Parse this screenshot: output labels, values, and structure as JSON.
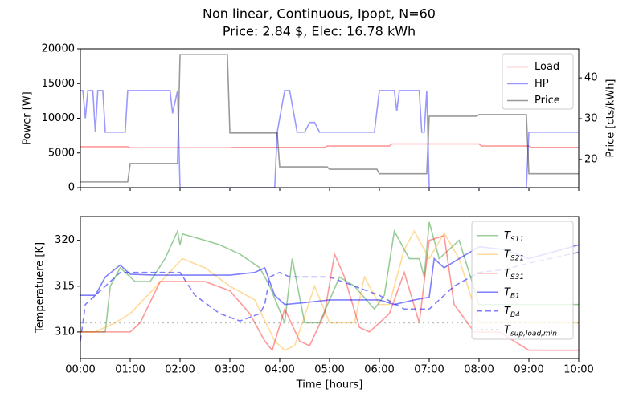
{
  "chart_data": [
    {
      "type": "line",
      "title": "Non linear, Continuous, Ipopt, N=60",
      "subtitle": "Price: 2.84 $, Elec: 16.78 kWh",
      "ylabel": "Power [W]",
      "y2label": "Price [cts/kWh]",
      "ylim": [
        0,
        20000
      ],
      "yticks": [
        0,
        5000,
        10000,
        15000,
        20000
      ],
      "y2lim": [
        13.1,
        47.1
      ],
      "y2ticks": [
        20,
        30,
        40
      ],
      "legend": "upper right",
      "series": [
        {
          "name": "Load",
          "color": "red",
          "alpha": 0.4,
          "style": "solid",
          "x": [
            0,
            0.95,
            1.0,
            3.0,
            3.05,
            4.9,
            4.95,
            6.2,
            6.25,
            8.0,
            8.05,
            9.0,
            9.05,
            10
          ],
          "values": [
            5900,
            5900,
            5750,
            5750,
            5800,
            5800,
            6000,
            6000,
            6300,
            6300,
            6000,
            6000,
            5800,
            5800
          ]
        },
        {
          "name": "HP",
          "color": "blue",
          "alpha": 0.4,
          "style": "solid",
          "x": [
            0,
            0.05,
            0.1,
            0.15,
            0.25,
            0.3,
            0.35,
            0.45,
            0.5,
            0.9,
            0.95,
            1.8,
            1.85,
            1.95,
            2.0,
            3.9,
            3.95,
            4.0,
            4.1,
            4.2,
            4.3,
            4.35,
            4.5,
            4.6,
            4.7,
            4.8,
            5.9,
            6.0,
            6.3,
            6.35,
            6.4,
            6.8,
            6.85,
            6.9,
            6.95,
            7.0,
            8.95,
            9.0,
            10
          ],
          "values": [
            14000,
            14000,
            10000,
            14000,
            14000,
            8000,
            14000,
            14000,
            8000,
            8000,
            14000,
            14000,
            10700,
            14000,
            0,
            0,
            8000,
            10000,
            14000,
            14000,
            10000,
            8000,
            8000,
            9400,
            9400,
            8000,
            8000,
            14000,
            14000,
            11000,
            14000,
            14000,
            8000,
            8000,
            14000,
            0,
            0,
            8000,
            8000
          ]
        },
        {
          "name": "Price",
          "color": "black",
          "alpha": 0.4,
          "style": "solid",
          "axis": "y2",
          "x": [
            0,
            0.95,
            1.0,
            1.95,
            2.0,
            2.95,
            3.0,
            3.95,
            4.0,
            4.95,
            5.0,
            5.95,
            6.0,
            6.95,
            7.0,
            7.95,
            8.0,
            8.95,
            9.0,
            10
          ],
          "values": [
            14.5,
            14.5,
            19,
            19,
            45.7,
            45.7,
            26.5,
            26.5,
            18.2,
            18.2,
            17.6,
            17.6,
            16.5,
            16.5,
            30.6,
            30.6,
            31,
            31,
            16.5,
            16.5
          ]
        }
      ]
    },
    {
      "type": "line",
      "xlabel": "Time [hours]",
      "ylabel": "Temperatuere [K]",
      "xlim": [
        0,
        10
      ],
      "xticks": [
        {
          "value": 0,
          "label": "00:00"
        },
        {
          "value": 1,
          "label": "01:00"
        },
        {
          "value": 2,
          "label": "02:00"
        },
        {
          "value": 3,
          "label": "03:00"
        },
        {
          "value": 4,
          "label": "04:00"
        },
        {
          "value": 5,
          "label": "05:00"
        },
        {
          "value": 6,
          "label": "06:00"
        },
        {
          "value": 7,
          "label": "07:00"
        },
        {
          "value": 8,
          "label": "08:00"
        },
        {
          "value": 9,
          "label": "09:00"
        },
        {
          "value": 10,
          "label": "10:00"
        }
      ],
      "ylim": [
        307.1,
        322.6
      ],
      "yticks": [
        310,
        315,
        320
      ],
      "legend": "upper right",
      "series": [
        {
          "name": {
            "base": "T",
            "sub": "S11"
          },
          "color": "green",
          "alpha": 0.4,
          "style": "solid",
          "x": [
            0,
            0.5,
            0.6,
            0.8,
            1.1,
            1.4,
            1.7,
            1.95,
            2.0,
            2.05,
            2.5,
            2.8,
            3.2,
            3.6,
            3.8,
            4.1,
            4.25,
            4.5,
            4.8,
            5.2,
            5.5,
            5.9,
            6.1,
            6.3,
            6.6,
            6.8,
            6.9,
            7.0,
            7.2,
            7.6,
            8.0,
            10
          ],
          "values": [
            310,
            310,
            315,
            317,
            315.5,
            315.5,
            318,
            321,
            319.5,
            320.7,
            320,
            319.5,
            318.5,
            317,
            315,
            311,
            318,
            311,
            311,
            316,
            315,
            312.5,
            314,
            321,
            318,
            318,
            316,
            322,
            318,
            320,
            313,
            313
          ]
        },
        {
          "name": {
            "base": "T",
            "sub": "S21"
          },
          "color": "orange",
          "alpha": 0.4,
          "style": "solid",
          "x": [
            0,
            0.3,
            0.7,
            1.0,
            2.05,
            2.5,
            3.0,
            3.5,
            3.9,
            4.1,
            4.3,
            4.7,
            5.0,
            5.5,
            5.7,
            6.0,
            6.2,
            6.5,
            6.7,
            7.0,
            7.3,
            7.6,
            8.0,
            10
          ],
          "values": [
            310,
            310,
            311,
            312,
            318,
            317,
            315,
            313.5,
            309,
            308,
            308.5,
            315,
            311,
            311,
            316,
            313,
            313,
            319,
            321,
            318,
            320.8,
            318,
            311,
            311
          ]
        },
        {
          "name": {
            "base": "T",
            "sub": "S31"
          },
          "color": "red",
          "alpha": 0.4,
          "style": "solid",
          "x": [
            0,
            1.0,
            1.2,
            1.6,
            2.5,
            3.0,
            3.4,
            3.7,
            3.85,
            4.1,
            4.4,
            4.6,
            4.9,
            5.1,
            5.3,
            5.6,
            5.8,
            6.2,
            6.5,
            6.8,
            7.0,
            7.3,
            7.5,
            7.9,
            8.4,
            9.0,
            10
          ],
          "values": [
            310,
            310,
            311,
            315.5,
            315.5,
            314.5,
            312,
            309,
            308,
            312.5,
            309,
            308.5,
            312,
            318.5,
            316,
            310.5,
            310,
            312,
            316.5,
            311,
            320,
            320.5,
            313,
            310,
            310,
            308,
            308
          ]
        },
        {
          "name": {
            "base": "T",
            "sub": "B1"
          },
          "color": "blue",
          "alpha": 0.5,
          "style": "solid",
          "x": [
            0,
            0.3,
            0.5,
            0.8,
            1.0,
            1.5,
            3.0,
            3.5,
            3.7,
            3.9,
            4.1,
            4.5,
            5.0,
            6.0,
            6.3,
            6.7,
            7.0,
            7.1,
            7.3,
            7.6,
            8.0,
            8.5,
            9.0,
            10
          ],
          "values": [
            314,
            314,
            316,
            317.3,
            316.3,
            316.2,
            316.2,
            316.5,
            317,
            314,
            313,
            313.2,
            313.5,
            313.5,
            313,
            313.5,
            313.8,
            318,
            317,
            318,
            319.3,
            319,
            318,
            319.5
          ]
        },
        {
          "name": {
            "base": "T",
            "sub": "B4"
          },
          "color": "blue",
          "alpha": 0.5,
          "style": "dashed",
          "x": [
            0,
            0.1,
            0.5,
            0.8,
            1.0,
            2.0,
            2.3,
            2.8,
            3.2,
            3.6,
            3.7,
            3.8,
            4.0,
            4.2,
            5.0,
            5.5,
            6.0,
            6.5,
            7.0,
            7.5,
            8.0,
            8.5,
            9.0,
            10
          ],
          "values": [
            309,
            313,
            315,
            316.5,
            316.5,
            316.5,
            314,
            312,
            311.2,
            312,
            313,
            316,
            316.5,
            316,
            316,
            315,
            314,
            312.5,
            312.5,
            315,
            316.5,
            316.8,
            317.5,
            318.7
          ]
        },
        {
          "name": {
            "base": "T",
            "sub": "sup,load,min"
          },
          "color": "gray",
          "alpha": 0.5,
          "style": "dotted",
          "x": [
            0,
            10
          ],
          "values": [
            311,
            311
          ]
        }
      ]
    }
  ]
}
